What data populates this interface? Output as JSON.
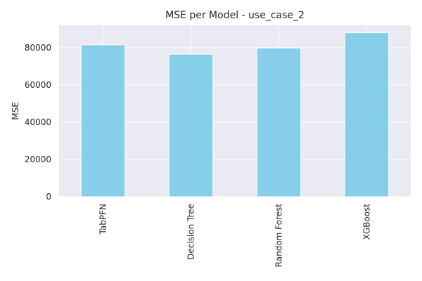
{
  "chart_data": {
    "type": "bar",
    "title": "MSE per Model - use_case_2",
    "xlabel": "",
    "ylabel": "MSE",
    "categories": [
      "TabPFN",
      "Decision Tree",
      "Random Forest",
      "XGBoost"
    ],
    "values": [
      81500,
      76500,
      79800,
      88000
    ],
    "ylim": [
      0,
      92000
    ],
    "yticks": [
      0,
      20000,
      40000,
      60000,
      80000
    ],
    "grid": true,
    "legend": "none",
    "bar_color": "#87ceeb",
    "background_color": "#eaeaf2",
    "grid_color": "#ffffff"
  }
}
